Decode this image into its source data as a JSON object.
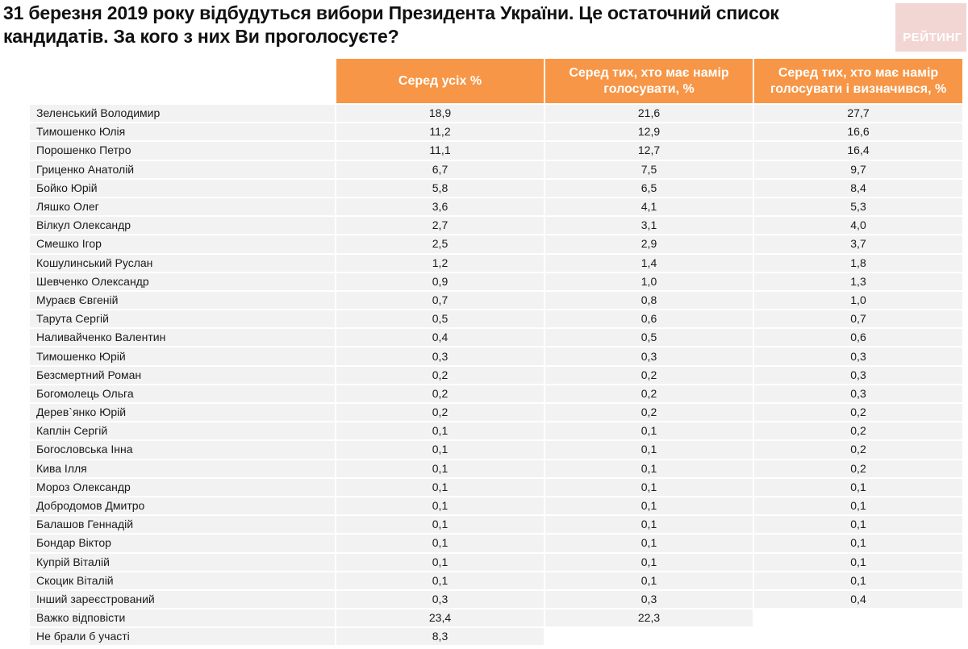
{
  "title": "31 березня 2019 року відбудуться вибори Президента України. Це остаточний список кандидатів. За кого з них Ви проголосуєте?",
  "logo": {
    "text": "РЕЙТИНГ",
    "color": "#f2d6d3"
  },
  "colors": {
    "header_bg": "#f79646",
    "header_text": "#ffffff",
    "row_bg": "#f2f2f2"
  },
  "table": {
    "headers": [
      "",
      "Серед усіх %",
      "Серед тих, хто має намір голосувати, %",
      "Серед тих, хто має намір голосувати і визначився, %"
    ],
    "rows": [
      {
        "name": "Зеленський Володимир",
        "all": "18,9",
        "voters": "21,6",
        "decided": "27,7"
      },
      {
        "name": "Тимошенко Юлія",
        "all": "11,2",
        "voters": "12,9",
        "decided": "16,6"
      },
      {
        "name": "Порошенко Петро",
        "all": "11,1",
        "voters": "12,7",
        "decided": "16,4"
      },
      {
        "name": "Гриценко Анатолій",
        "all": "6,7",
        "voters": "7,5",
        "decided": "9,7"
      },
      {
        "name": "Бойко Юрій",
        "all": "5,8",
        "voters": "6,5",
        "decided": "8,4"
      },
      {
        "name": "Ляшко Олег",
        "all": "3,6",
        "voters": "4,1",
        "decided": "5,3"
      },
      {
        "name": "Вілкул Олександр",
        "all": "2,7",
        "voters": "3,1",
        "decided": "4,0"
      },
      {
        "name": "Смешко Ігор",
        "all": "2,5",
        "voters": "2,9",
        "decided": "3,7"
      },
      {
        "name": "Кошулинський Руслан",
        "all": "1,2",
        "voters": "1,4",
        "decided": "1,8"
      },
      {
        "name": "Шевченко Олександр",
        "all": "0,9",
        "voters": "1,0",
        "decided": "1,3"
      },
      {
        "name": "Мураєв Євгеній",
        "all": "0,7",
        "voters": "0,8",
        "decided": "1,0"
      },
      {
        "name": "Тарута Сергій",
        "all": "0,5",
        "voters": "0,6",
        "decided": "0,7"
      },
      {
        "name": "Наливайченко Валентин",
        "all": "0,4",
        "voters": "0,5",
        "decided": "0,6"
      },
      {
        "name": "Тимошенко Юрій",
        "all": "0,3",
        "voters": "0,3",
        "decided": "0,3"
      },
      {
        "name": "Безсмертний Роман",
        "all": "0,2",
        "voters": "0,2",
        "decided": "0,3"
      },
      {
        "name": "Богомолець Ольга",
        "all": "0,2",
        "voters": "0,2",
        "decided": "0,3"
      },
      {
        "name": "Дерев`янко Юрій",
        "all": "0,2",
        "voters": "0,2",
        "decided": "0,2"
      },
      {
        "name": "Каплін Сергій",
        "all": "0,1",
        "voters": "0,1",
        "decided": "0,2"
      },
      {
        "name": "Богословська Інна",
        "all": "0,1",
        "voters": "0,1",
        "decided": "0,2"
      },
      {
        "name": "Кива Ілля",
        "all": "0,1",
        "voters": "0,1",
        "decided": "0,2"
      },
      {
        "name": "Мороз Олександр",
        "all": "0,1",
        "voters": "0,1",
        "decided": "0,1"
      },
      {
        "name": "Добродомов Дмитро",
        "all": "0,1",
        "voters": "0,1",
        "decided": "0,1"
      },
      {
        "name": "Балашов Геннадій",
        "all": "0,1",
        "voters": "0,1",
        "decided": "0,1"
      },
      {
        "name": "Бондар Віктор",
        "all": "0,1",
        "voters": "0,1",
        "decided": "0,1"
      },
      {
        "name": "Купрій Віталій",
        "all": "0,1",
        "voters": "0,1",
        "decided": "0,1"
      },
      {
        "name": "Скоцик Віталій",
        "all": "0,1",
        "voters": "0,1",
        "decided": "0,1"
      },
      {
        "name": "Інший зареєстрований",
        "all": "0,3",
        "voters": "0,3",
        "decided": "0,4"
      },
      {
        "name": "Важко відповісти",
        "all": "23,4",
        "voters": "22,3",
        "decided": null
      },
      {
        "name": "Не брали б участі",
        "all": "8,3",
        "voters": null,
        "decided": null
      }
    ]
  }
}
